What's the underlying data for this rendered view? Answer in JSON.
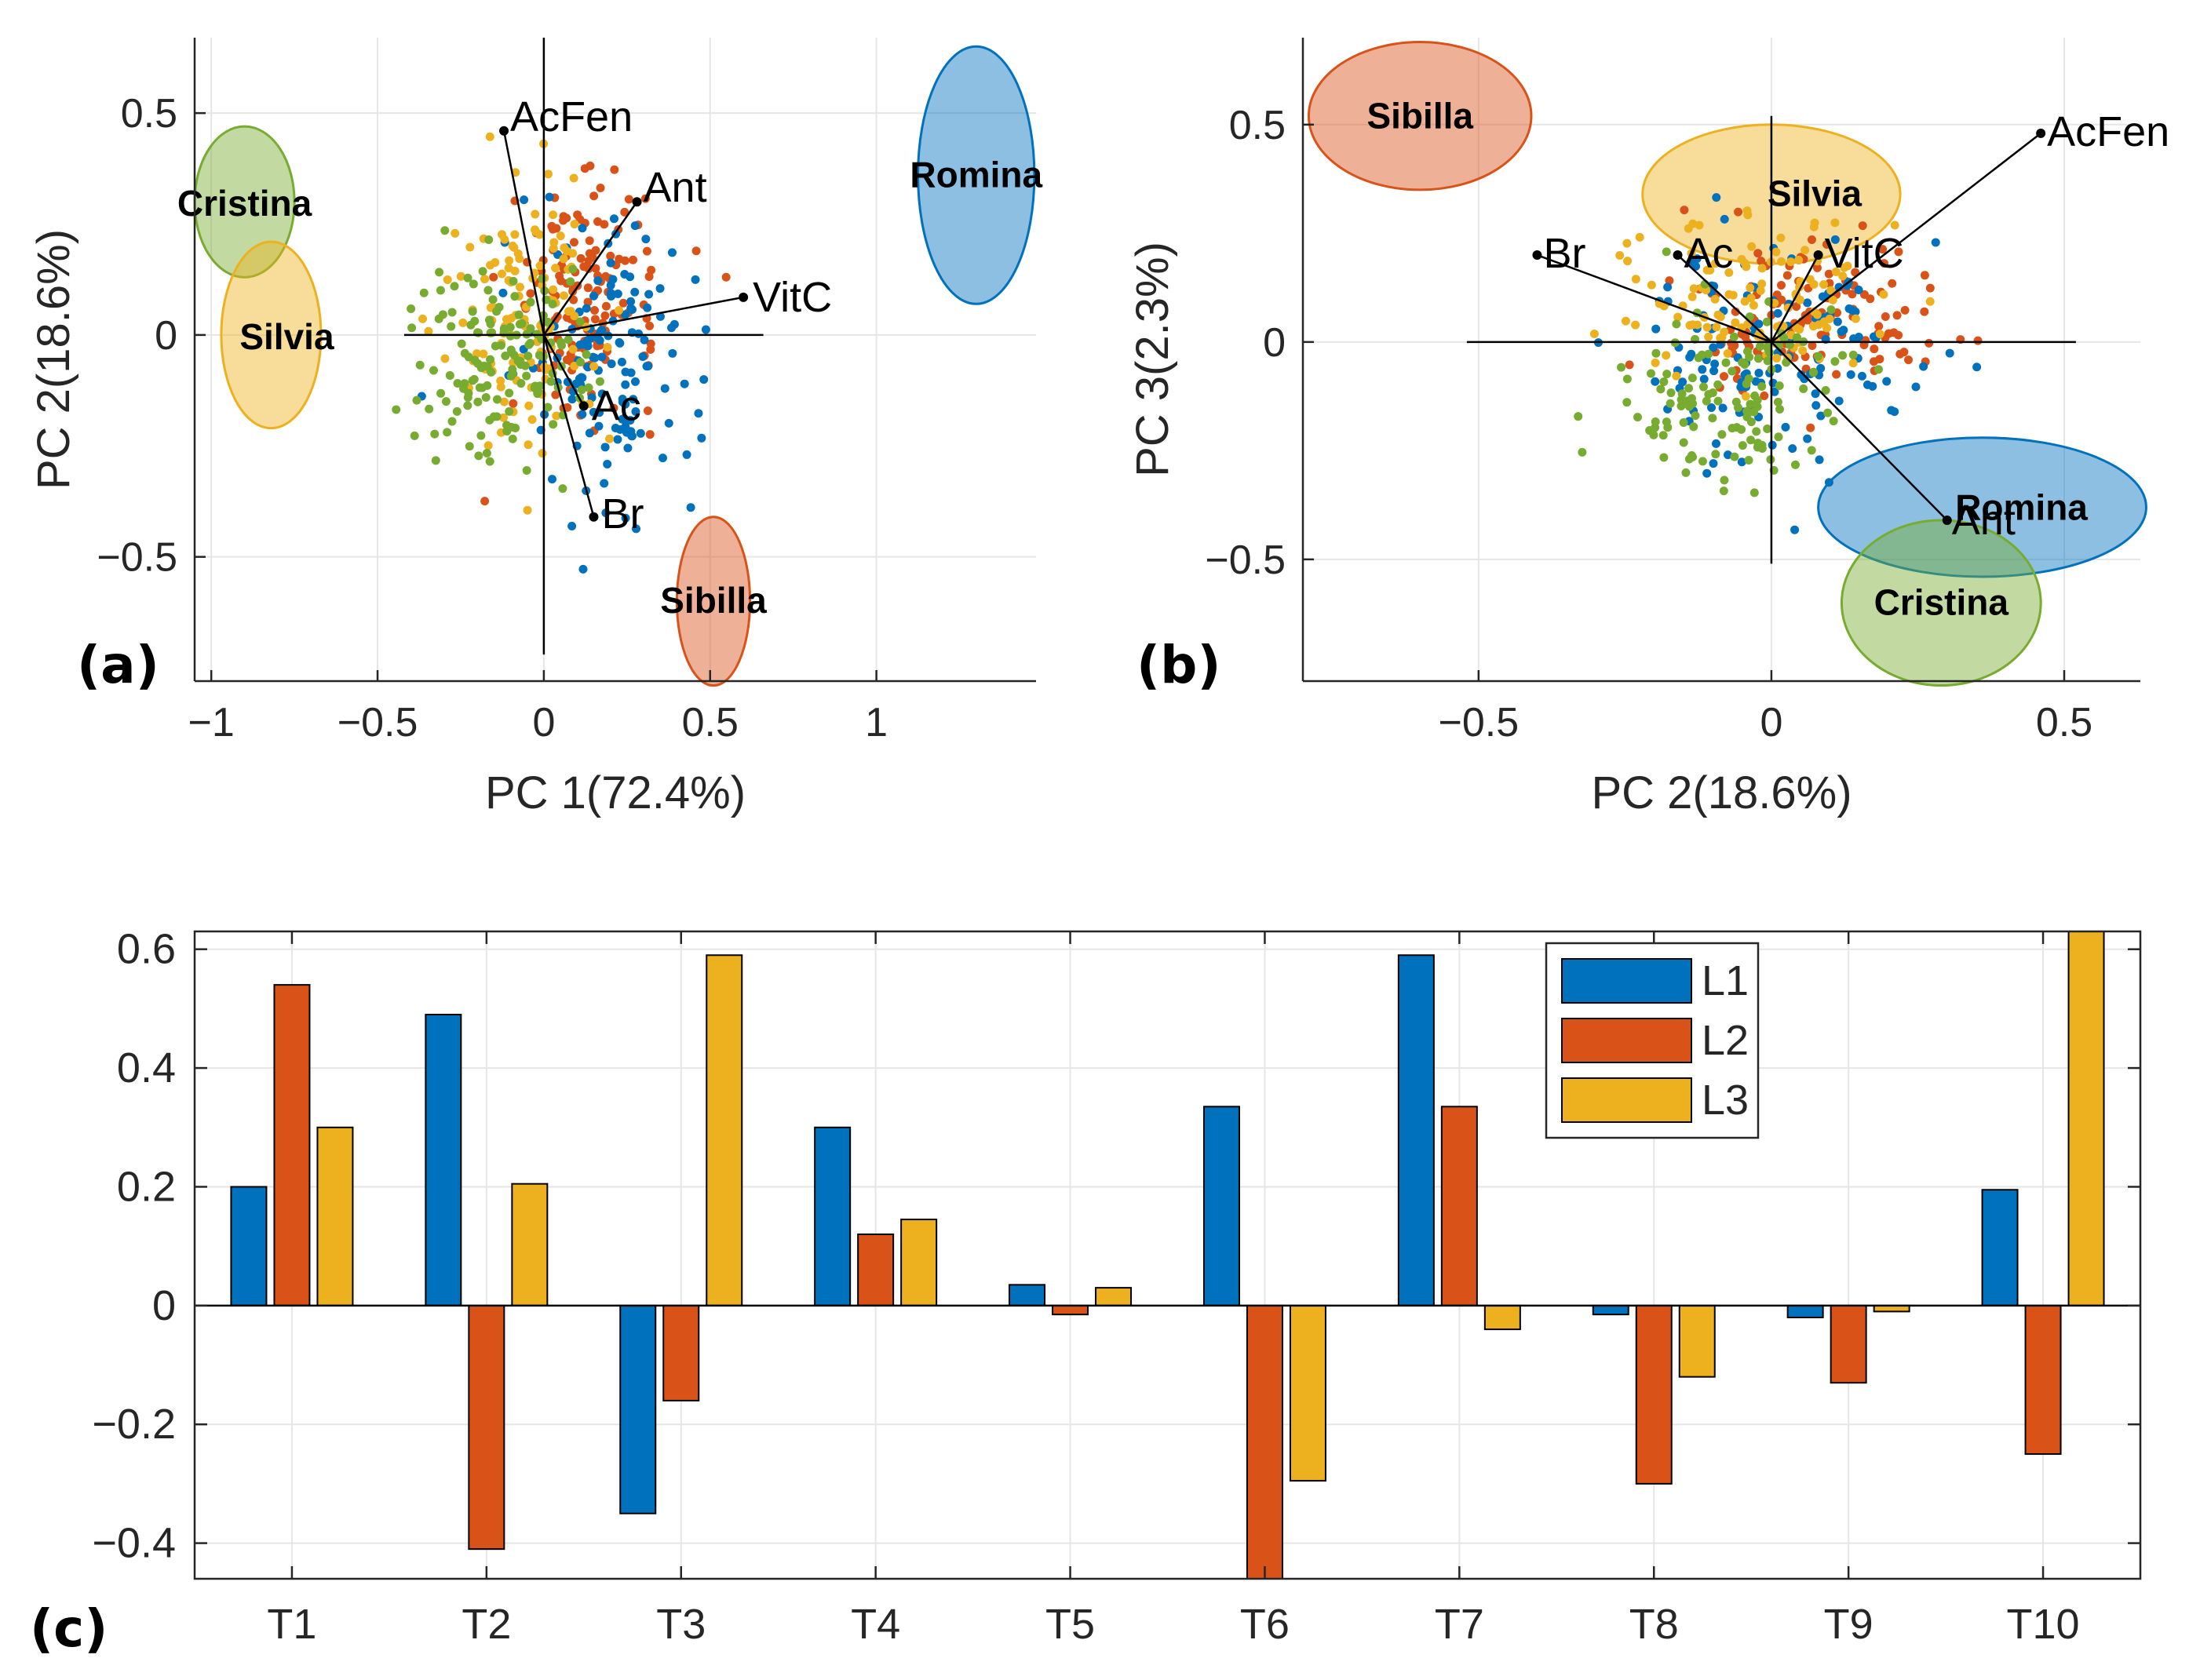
{
  "colors": {
    "L1": "#0072BD",
    "L2": "#D95319",
    "L3": "#EDB120",
    "green": "#77AC30"
  },
  "chart_data": [
    {
      "id": "a",
      "type": "scatter",
      "panel_label": "(a)",
      "xlabel": "PC 1(72.4%)",
      "ylabel": "PC 2(18.6%)",
      "xlim": [
        -1.05,
        1.48
      ],
      "ylim": [
        -0.78,
        0.67
      ],
      "xticks": [
        -1,
        -0.5,
        0,
        0.5,
        1
      ],
      "xtick_labels": [
        "−1",
        "−0.5",
        "0",
        "0.5",
        "1"
      ],
      "yticks": [
        -0.5,
        0,
        0.5
      ],
      "ytick_labels": [
        "−0.5",
        "0",
        "0.5"
      ],
      "grid": true,
      "loadings": [
        {
          "name": "AcFen",
          "x": -0.12,
          "y": 0.46
        },
        {
          "name": "Ant",
          "x": 0.28,
          "y": 0.3
        },
        {
          "name": "VitC",
          "x": 0.6,
          "y": 0.085
        },
        {
          "name": "Ac",
          "x": 0.12,
          "y": -0.16
        },
        {
          "name": "Br",
          "x": 0.15,
          "y": -0.41
        }
      ],
      "clusters": [
        {
          "name": "Cristina",
          "cx": -0.9,
          "cy": 0.3,
          "rx": 0.15,
          "ry": 0.17,
          "color": "#77AC30"
        },
        {
          "name": "Silvia",
          "cx": -0.82,
          "cy": 0.0,
          "rx": 0.15,
          "ry": 0.21,
          "color": "#EDB120"
        },
        {
          "name": "Romina",
          "cx": 1.3,
          "cy": 0.36,
          "rx": 0.175,
          "ry": 0.29,
          "color": "#0072BD"
        },
        {
          "name": "Sibilla",
          "cx": 0.51,
          "cy": -0.6,
          "rx": 0.11,
          "ry": 0.19,
          "color": "#D95319"
        }
      ]
    },
    {
      "id": "b",
      "type": "scatter",
      "panel_label": "(b)",
      "xlabel": "PC 2(18.6%)",
      "ylabel": "PC 3(2.3%)",
      "xlim": [
        -0.8,
        0.63
      ],
      "ylim": [
        -0.78,
        0.7
      ],
      "xticks": [
        -0.5,
        0,
        0.5
      ],
      "xtick_labels": [
        "−0.5",
        "0",
        "0.5"
      ],
      "yticks": [
        -0.5,
        0,
        0.5
      ],
      "ytick_labels": [
        "−0.5",
        "0",
        "0.5"
      ],
      "grid": true,
      "loadings": [
        {
          "name": "AcFen",
          "x": 0.46,
          "y": 0.48
        },
        {
          "name": "Br",
          "x": -0.4,
          "y": 0.2
        },
        {
          "name": "Ac",
          "x": -0.16,
          "y": 0.2
        },
        {
          "name": "VitC",
          "x": 0.08,
          "y": 0.2
        },
        {
          "name": "Ant",
          "x": 0.3,
          "y": -0.41
        }
      ],
      "clusters": [
        {
          "name": "Sibilla",
          "cx": -0.6,
          "cy": 0.52,
          "rx": 0.19,
          "ry": 0.17,
          "color": "#D95319"
        },
        {
          "name": "Silvia",
          "cx": 0.0,
          "cy": 0.34,
          "rx": 0.22,
          "ry": 0.16,
          "color": "#EDB120"
        },
        {
          "name": "Romina",
          "cx": 0.36,
          "cy": -0.38,
          "rx": 0.28,
          "ry": 0.16,
          "color": "#0072BD"
        },
        {
          "name": "Cristina",
          "cx": 0.29,
          "cy": -0.6,
          "rx": 0.17,
          "ry": 0.19,
          "color": "#77AC30"
        }
      ]
    },
    {
      "id": "c",
      "type": "bar",
      "panel_label": "(c)",
      "categories": [
        "T1",
        "T2",
        "T3",
        "T4",
        "T5",
        "T6",
        "T7",
        "T8",
        "T9",
        "T10"
      ],
      "series": [
        {
          "name": "L1",
          "values": [
            0.2,
            0.49,
            -0.35,
            0.3,
            0.035,
            0.335,
            0.59,
            -0.015,
            -0.02,
            0.195
          ]
        },
        {
          "name": "L2",
          "values": [
            0.54,
            -0.41,
            -0.16,
            0.12,
            -0.015,
            -0.46,
            0.335,
            -0.3,
            -0.13,
            -0.25
          ]
        },
        {
          "name": "L3",
          "values": [
            0.3,
            0.205,
            0.59,
            0.145,
            0.03,
            -0.295,
            -0.04,
            -0.12,
            -0.01,
            0.63
          ]
        }
      ],
      "ylim": [
        -0.46,
        0.63
      ],
      "yticks": [
        -0.4,
        -0.2,
        0,
        0.2,
        0.4,
        0.6
      ],
      "ytick_labels": [
        "−0.4",
        "−0.2",
        "0",
        "0.2",
        "0.4",
        "0.6"
      ],
      "grid": true,
      "legend": {
        "entries": [
          "L1",
          "L2",
          "L3"
        ],
        "location": "top-right-inside"
      }
    }
  ]
}
